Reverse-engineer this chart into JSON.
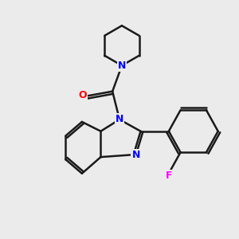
{
  "bg_color": "#ebebeb",
  "bond_color": "#1a1a1a",
  "N_color": "#0000ff",
  "O_color": "#ff0000",
  "F_color": "#ff00ff",
  "line_width": 1.8,
  "fig_size": [
    3.0,
    3.0
  ],
  "dpi": 100,
  "xlim": [
    0,
    10
  ],
  "ylim": [
    0,
    10
  ]
}
